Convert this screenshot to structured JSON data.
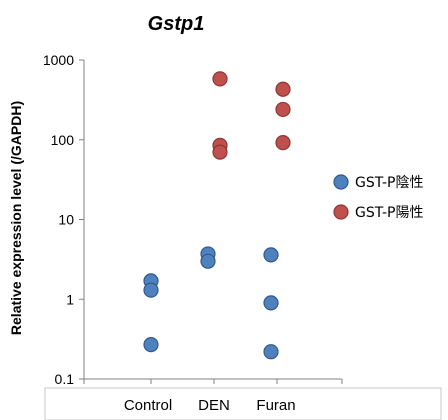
{
  "chart_data": {
    "type": "scatter",
    "title": "Gstp1",
    "ylabel": "Relative expression level (/GAPDH)",
    "xlabel": "",
    "yscale": "log",
    "ylim": [
      0.1,
      1000
    ],
    "yticks": [
      "0.1",
      "1",
      "10",
      "100",
      "1000"
    ],
    "categories": [
      "Control",
      "DEN",
      "Furan"
    ],
    "grid": false,
    "legend_position": "right",
    "series": [
      {
        "name": "GST-P陰性",
        "color": "#4f81bd",
        "edge_color": "#2e5a8e",
        "points": [
          {
            "category": "Control",
            "offset": 0,
            "value": 1.7
          },
          {
            "category": "Control",
            "offset": 0,
            "value": 1.3
          },
          {
            "category": "Control",
            "offset": 0,
            "value": 0.27
          },
          {
            "category": "DEN",
            "offset": -1,
            "value": 3.7
          },
          {
            "category": "DEN",
            "offset": -1,
            "value": 3.0
          },
          {
            "category": "Furan",
            "offset": -1,
            "value": 3.6
          },
          {
            "category": "Furan",
            "offset": -1,
            "value": 0.9
          },
          {
            "category": "Furan",
            "offset": -1,
            "value": 0.22
          }
        ]
      },
      {
        "name": "GST-P陽性",
        "color": "#c0504d",
        "edge_color": "#8c3836",
        "points": [
          {
            "category": "DEN",
            "offset": 1,
            "value": 580
          },
          {
            "category": "DEN",
            "offset": 1,
            "value": 85
          },
          {
            "category": "DEN",
            "offset": 1,
            "value": 70
          },
          {
            "category": "Furan",
            "offset": 1,
            "value": 430
          },
          {
            "category": "Furan",
            "offset": 1,
            "value": 240
          },
          {
            "category": "Furan",
            "offset": 1,
            "value": 92
          }
        ]
      }
    ]
  }
}
